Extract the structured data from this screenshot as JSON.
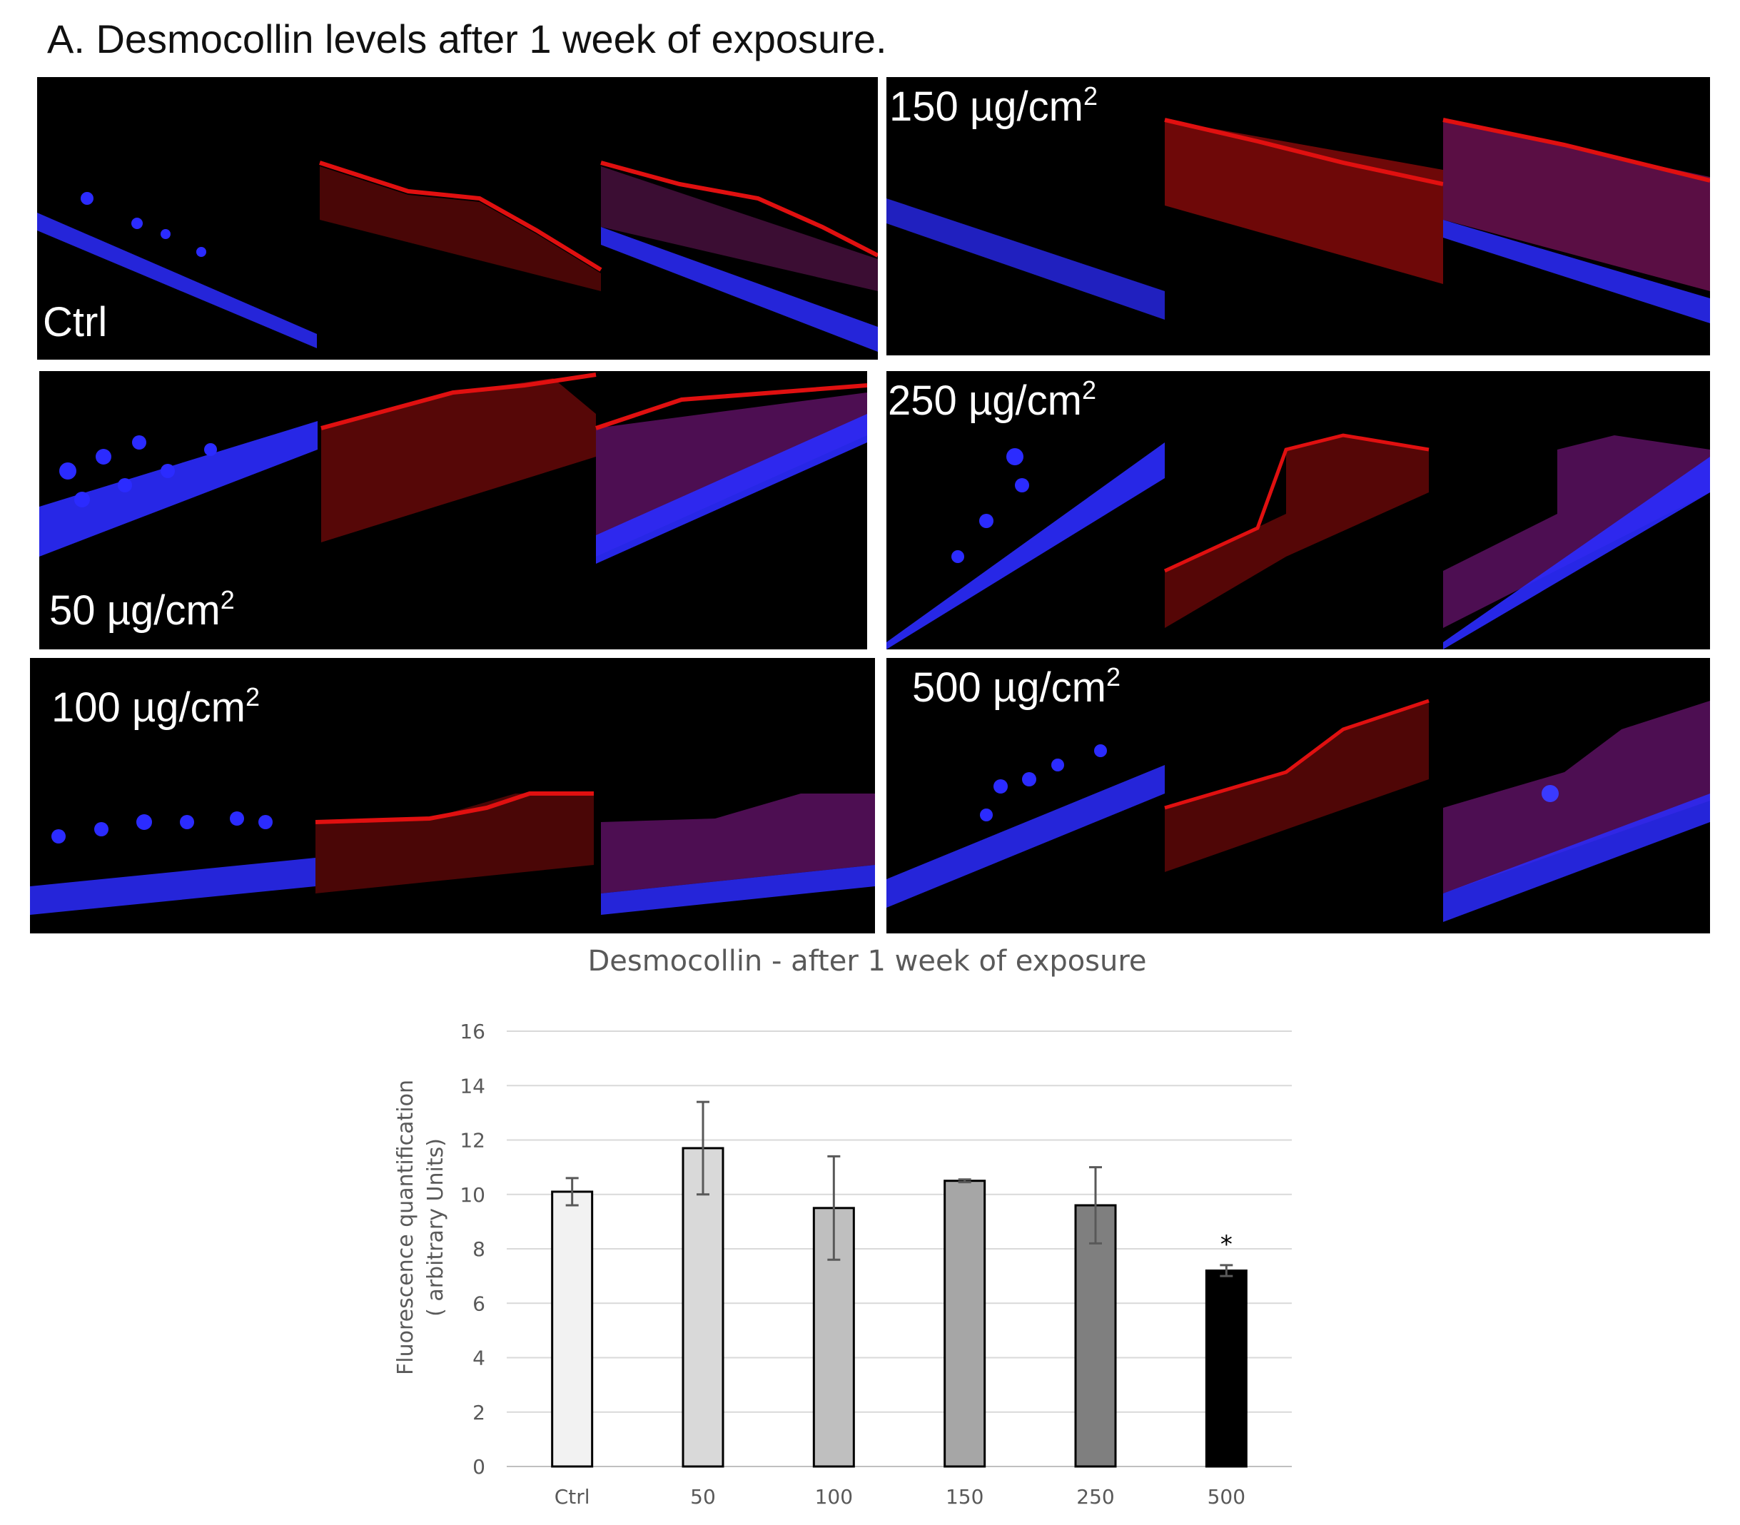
{
  "figure": {
    "heading": "A. Desmocollin levels after 1 week of exposure.",
    "panels": [
      {
        "id": "ctrl",
        "label": "Ctrl",
        "unit_sup": ""
      },
      {
        "id": "d150",
        "label": "150 µg/cm",
        "unit_sup": "2"
      },
      {
        "id": "d50",
        "label": "50 µg/cm",
        "unit_sup": "2"
      },
      {
        "id": "d250",
        "label": "250 µg/cm",
        "unit_sup": "2"
      },
      {
        "id": "d100",
        "label": "100 µg/cm",
        "unit_sup": "2"
      },
      {
        "id": "d500",
        "label": "500 µg/cm",
        "unit_sup": "2"
      }
    ],
    "channel_colors": {
      "nuclei": "#2b2bff",
      "membrane": "#e01010",
      "background": "#000000"
    }
  },
  "chart_data": {
    "type": "bar",
    "title": "Desmocollin - after 1 week of exposure",
    "ylabel_line1": "Fluorescence quantification",
    "ylabel_line2": "( arbitrary Units)",
    "xlabel": "",
    "categories": [
      "Ctrl",
      "50",
      "100",
      "150",
      "250",
      "500"
    ],
    "values": [
      10.1,
      11.7,
      9.5,
      10.5,
      9.6,
      7.2
    ],
    "errors": [
      0.5,
      1.7,
      1.9,
      0.05,
      1.4,
      0.2
    ],
    "bar_colors": [
      "#f2f2f2",
      "#d9d9d9",
      "#bfbfbf",
      "#a6a6a6",
      "#7f7f7f",
      "#000000"
    ],
    "significance": [
      "",
      "",
      "",
      "",
      "",
      "*"
    ],
    "ylim": [
      0,
      16
    ],
    "yticks": [
      0,
      2,
      4,
      6,
      8,
      10,
      12,
      14,
      16
    ],
    "grid": true
  }
}
